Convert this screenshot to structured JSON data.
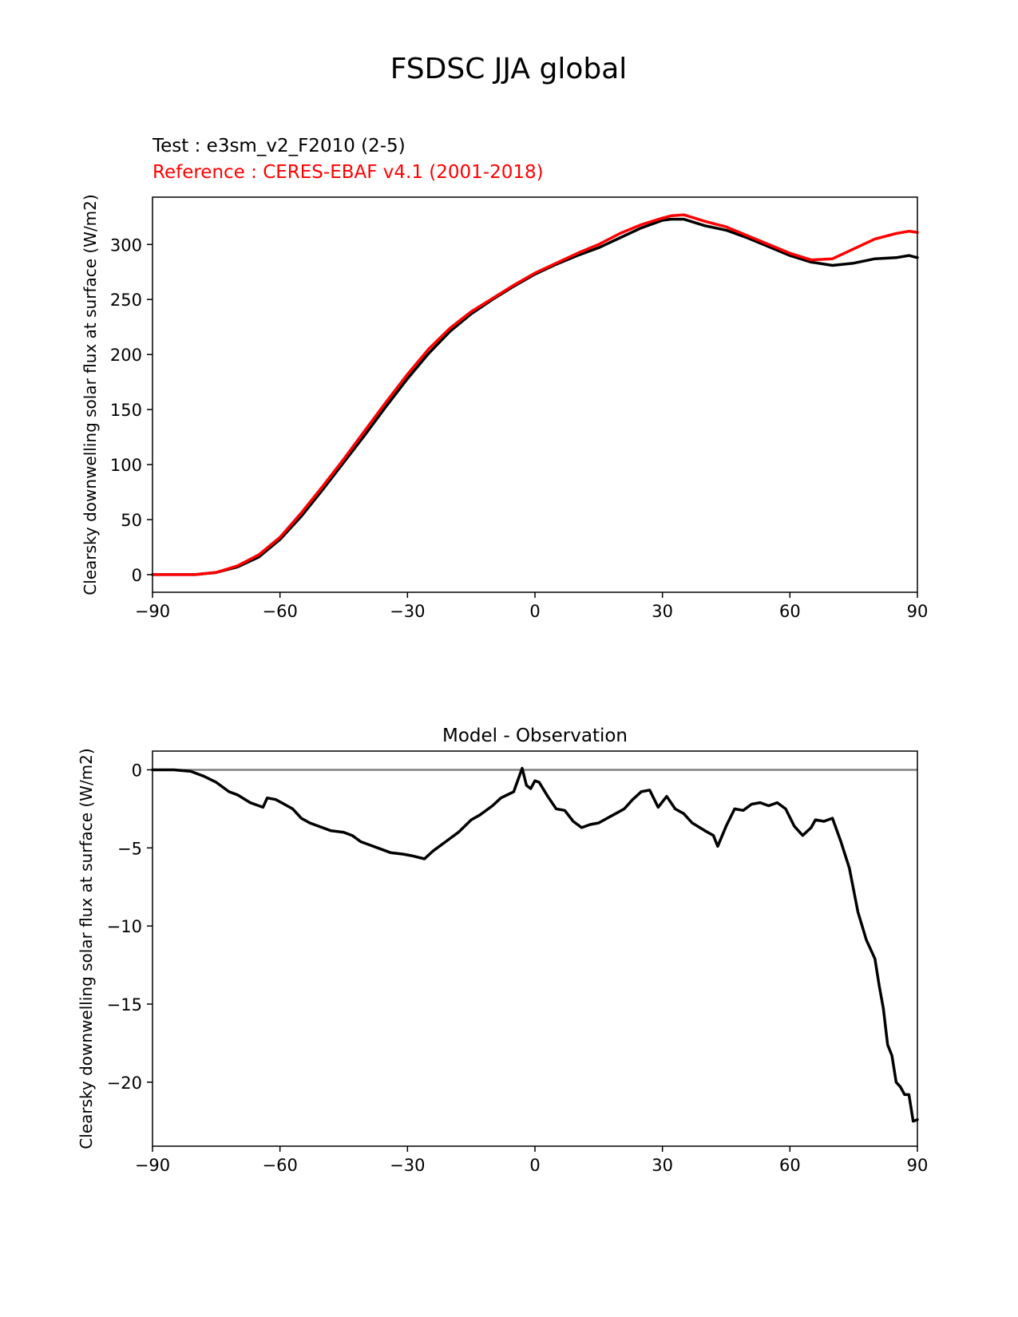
{
  "figure_title": "FSDSC JJA global",
  "test_label": "Test : e3sm_v2_F2010 (2-5)",
  "reference_label": "Reference : CERES-EBAF v4.1 (2001-2018)",
  "colors": {
    "test": "#000000",
    "reference": "#ff0000",
    "zero_line": "#808080"
  },
  "chart_data": [
    {
      "type": "line",
      "title": "",
      "xlabel": "",
      "ylabel": "Clearsky downwelling solar flux at surface (W/m2)",
      "xlim": [
        -90,
        90
      ],
      "ylim": [
        -16,
        343
      ],
      "xticks": [
        -90,
        -60,
        -30,
        0,
        30,
        60,
        90
      ],
      "xtick_labels": [
        "−90",
        "−60",
        "−30",
        "0",
        "30",
        "60",
        "90"
      ],
      "yticks": [
        0,
        50,
        100,
        150,
        200,
        250,
        300
      ],
      "ytick_labels": [
        "0",
        "50",
        "100",
        "150",
        "200",
        "250",
        "300"
      ],
      "x": [
        -90,
        -85,
        -80,
        -75,
        -70,
        -65,
        -60,
        -55,
        -50,
        -45,
        -40,
        -35,
        -30,
        -25,
        -20,
        -15,
        -10,
        -5,
        0,
        5,
        10,
        15,
        20,
        25,
        30,
        32,
        35,
        40,
        45,
        50,
        55,
        60,
        65,
        70,
        75,
        80,
        85,
        88,
        90
      ],
      "series": [
        {
          "name": "Test : e3sm_v2_F2010 (2-5)",
          "color": "#000000",
          "values": [
            0,
            0,
            0,
            2,
            7,
            16,
            32,
            53,
            77,
            102,
            127,
            153,
            178,
            201,
            221,
            237,
            250,
            262,
            273,
            282,
            290,
            297,
            306,
            315,
            322,
            323,
            323,
            317,
            313,
            306,
            298,
            290,
            284,
            281,
            283,
            287,
            288,
            290,
            288
          ]
        },
        {
          "name": "Reference : CERES-EBAF v4.1 (2001-2018)",
          "color": "#ff0000",
          "values": [
            0,
            0,
            0,
            2,
            8,
            18,
            34,
            56,
            80,
            105,
            131,
            157,
            182,
            205,
            224,
            239,
            251,
            263,
            274,
            283,
            292,
            300,
            310,
            318,
            324,
            326,
            327,
            321,
            316,
            308,
            300,
            292,
            286,
            287,
            296,
            305,
            310,
            312,
            311
          ]
        }
      ],
      "grid": false,
      "legend": "none"
    },
    {
      "type": "line",
      "title": "Model - Observation",
      "xlabel": "",
      "ylabel": "Clearsky downwelling solar flux at surface (W/m2)",
      "xlim": [
        -90,
        90
      ],
      "ylim": [
        -24.1,
        1.2
      ],
      "xticks": [
        -90,
        -60,
        -30,
        0,
        30,
        60,
        90
      ],
      "xtick_labels": [
        "−90",
        "−60",
        "−30",
        "0",
        "30",
        "60",
        "90"
      ],
      "yticks": [
        0,
        -5,
        -10,
        -15,
        -20
      ],
      "ytick_labels": [
        "0",
        "−5",
        "−10",
        "−15",
        "−20"
      ],
      "x": [
        -90,
        -85,
        -81,
        -78,
        -75,
        -72,
        -70,
        -67,
        -64,
        -63,
        -61,
        -59,
        -57,
        -55,
        -53,
        -50,
        -48,
        -45,
        -43,
        -41,
        -39,
        -37,
        -34,
        -31,
        -29,
        -26,
        -24,
        -21,
        -18,
        -15,
        -13,
        -10,
        -8,
        -5,
        -3,
        -2,
        -1,
        0,
        1,
        3,
        5,
        7,
        9,
        11,
        13,
        15,
        17,
        19,
        21,
        23,
        25,
        27,
        29,
        31,
        33,
        35,
        37,
        40,
        42,
        43,
        45,
        47,
        49,
        51,
        53,
        55,
        57,
        59,
        61,
        63,
        65,
        66,
        68,
        70,
        72,
        74,
        76,
        78,
        80,
        81,
        82,
        83,
        84,
        85,
        86,
        87,
        88,
        89,
        90
      ],
      "series": [
        {
          "name": "Model - Observation",
          "color": "#000000",
          "values": [
            0,
            0,
            -0.1,
            -0.4,
            -0.8,
            -1.4,
            -1.6,
            -2.1,
            -2.4,
            -1.8,
            -1.9,
            -2.2,
            -2.5,
            -3.1,
            -3.4,
            -3.7,
            -3.9,
            -4.0,
            -4.2,
            -4.6,
            -4.8,
            -5.0,
            -5.3,
            -5.4,
            -5.5,
            -5.7,
            -5.2,
            -4.6,
            -4.0,
            -3.2,
            -2.9,
            -2.3,
            -1.8,
            -1.4,
            0.1,
            -1.0,
            -1.2,
            -0.7,
            -0.8,
            -1.7,
            -2.5,
            -2.6,
            -3.3,
            -3.7,
            -3.5,
            -3.4,
            -3.1,
            -2.8,
            -2.5,
            -1.9,
            -1.4,
            -1.3,
            -2.4,
            -1.7,
            -2.5,
            -2.8,
            -3.4,
            -3.9,
            -4.2,
            -4.9,
            -3.6,
            -2.5,
            -2.6,
            -2.2,
            -2.1,
            -2.3,
            -2.1,
            -2.5,
            -3.6,
            -4.2,
            -3.7,
            -3.2,
            -3.3,
            -3.1,
            -4.6,
            -6.3,
            -9.1,
            -10.9,
            -12.1,
            -13.8,
            -15.3,
            -17.6,
            -18.3,
            -20.0,
            -20.3,
            -20.8,
            -20.8,
            -22.5,
            -22.4
          ]
        }
      ],
      "reference_line": 0,
      "grid": false,
      "legend": "none"
    }
  ]
}
